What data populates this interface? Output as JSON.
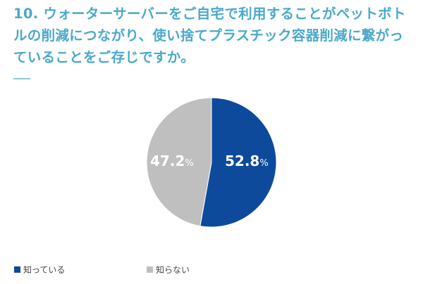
{
  "title": "10. ウォーターサーバーをご自宅で利用することがペットボトルの削減につながり、使い捨てプラスチック容器削減に繋がっていることをご存じですか。",
  "colors": {
    "title": "#4aa9c9",
    "known": "#0d4a9c",
    "unknown": "#bfbfbf"
  },
  "labels": {
    "known_value": "52.8",
    "unknown_value": "47.2",
    "pct_sign": "%"
  },
  "legend": [
    {
      "label": "知っている",
      "color": "#0d4a9c"
    },
    {
      "label": "知らない",
      "color": "#bfbfbf"
    }
  ],
  "chart_data": {
    "type": "pie",
    "title": "10. ウォーターサーバーをご自宅で利用することがペットボトルの削減につながり、使い捨てプラスチック容器削減に繋がっていることをご存じですか。",
    "categories": [
      "知っている",
      "知らない"
    ],
    "values": [
      52.8,
      47.2
    ],
    "unit": "%",
    "colors": [
      "#0d4a9c",
      "#bfbfbf"
    ],
    "start_angle": "12 o'clock, clockwise",
    "legend_position": "bottom"
  }
}
